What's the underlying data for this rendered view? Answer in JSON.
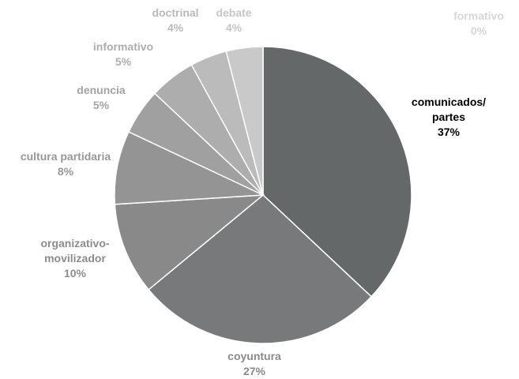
{
  "chart_data": {
    "type": "pie",
    "slices": [
      {
        "label": [
          "comunicados/",
          "partes"
        ],
        "value": 37,
        "display": "37%",
        "color": "#646868",
        "label_color": "#000000"
      },
      {
        "label": [
          "coyuntura"
        ],
        "value": 27,
        "display": "27%",
        "color": "#77797b",
        "label_color": "#8a8a8a"
      },
      {
        "label": [
          "organizativo-",
          "movilizador"
        ],
        "value": 10,
        "display": "10%",
        "color": "#898989",
        "label_color": "#8c8c8c"
      },
      {
        "label": [
          "cultura partidaria"
        ],
        "value": 8,
        "display": "8%",
        "color": "#949494",
        "label_color": "#989898"
      },
      {
        "label": [
          "denuncia"
        ],
        "value": 5,
        "display": "5%",
        "color": "#a0a0a0",
        "label_color": "#a3a3a3"
      },
      {
        "label": [
          "informativo"
        ],
        "value": 5,
        "display": "5%",
        "color": "#adadad",
        "label_color": "#aeaeae"
      },
      {
        "label": [
          "doctrinal"
        ],
        "value": 4,
        "display": "4%",
        "color": "#bbbbbb",
        "label_color": "#b9b9b9"
      },
      {
        "label": [
          "debate"
        ],
        "value": 4,
        "display": "4%",
        "color": "#c9c9c9",
        "label_color": "#c6c6c6"
      },
      {
        "label": [
          "formativo"
        ],
        "value": 0,
        "display": "0%",
        "color": "#e3e3e3",
        "label_color": "#d7d7d7"
      }
    ]
  }
}
